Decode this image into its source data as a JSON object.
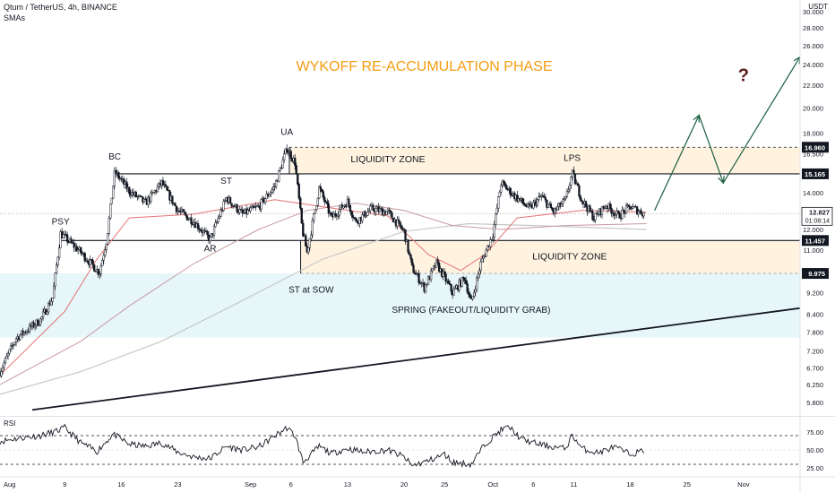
{
  "header": {
    "symbol_line": "Qtum / TetherUS, 4h, BINANCE",
    "indicator_label": "SMAs",
    "currency": "USDT"
  },
  "chart_data": {
    "type": "candlestick",
    "title": "WYKOFF RE-ACCUMULATION PHASE",
    "y_scale": "log",
    "ylim": [
      5.5,
      31.5
    ],
    "y_ticks": [
      {
        "v": 30.0,
        "label": "30.000"
      },
      {
        "v": 28.0,
        "label": "28.000"
      },
      {
        "v": 26.0,
        "label": "26.000"
      },
      {
        "v": 24.0,
        "label": "24.000"
      },
      {
        "v": 22.0,
        "label": "22.000"
      },
      {
        "v": 20.0,
        "label": "20.000"
      },
      {
        "v": 18.0,
        "label": "18.000"
      },
      {
        "v": 16.5,
        "label": "16.500"
      },
      {
        "v": 14.0,
        "label": "14.000"
      },
      {
        "v": 12.0,
        "label": "12.000"
      },
      {
        "v": 11.0,
        "label": "11.000"
      },
      {
        "v": 9.2,
        "label": "9.200"
      },
      {
        "v": 8.4,
        "label": "8.400"
      },
      {
        "v": 7.8,
        "label": "7.800"
      },
      {
        "v": 7.2,
        "label": "7.200"
      },
      {
        "v": 6.7,
        "label": "6.700"
      },
      {
        "v": 6.25,
        "label": "6.250"
      },
      {
        "v": 5.8,
        "label": "5.800"
      }
    ],
    "x_ticks": [
      {
        "label": "Aug",
        "day": 0
      },
      {
        "label": "9",
        "day": 8
      },
      {
        "label": "16",
        "day": 15
      },
      {
        "label": "23",
        "day": 22
      },
      {
        "label": "Sep",
        "day": 31
      },
      {
        "label": "6",
        "day": 36
      },
      {
        "label": "13",
        "day": 43
      },
      {
        "label": "20",
        "day": 50
      },
      {
        "label": "25",
        "day": 55
      },
      {
        "label": "Oct",
        "day": 61
      },
      {
        "label": "6",
        "day": 66
      },
      {
        "label": "11",
        "day": 71
      },
      {
        "label": "18",
        "day": 78
      },
      {
        "label": "25",
        "day": 85
      },
      {
        "label": "Nov",
        "day": 92
      }
    ],
    "price_markers": [
      {
        "v": 16.96,
        "label": "16.960"
      },
      {
        "v": 15.165,
        "label": "15.165"
      },
      {
        "v": 11.457,
        "label": "11.457"
      },
      {
        "v": 9.975,
        "label": "9.975"
      }
    ],
    "last_price": {
      "label": "12.827",
      "countdown": "01:08:14",
      "v": 12.827
    },
    "swing_points": [
      {
        "day": 0,
        "v": 6.6
      },
      {
        "day": 2,
        "v": 7.6
      },
      {
        "day": 5,
        "v": 8.2
      },
      {
        "day": 6.5,
        "v": 9.0
      },
      {
        "day": 7.5,
        "v": 11.8
      },
      {
        "day": 10,
        "v": 10.9
      },
      {
        "day": 12.3,
        "v": 10.0
      },
      {
        "day": 13.2,
        "v": 11.5
      },
      {
        "day": 14.2,
        "v": 15.3
      },
      {
        "day": 16,
        "v": 14.1
      },
      {
        "day": 18,
        "v": 13.4
      },
      {
        "day": 20,
        "v": 14.6
      },
      {
        "day": 22,
        "v": 13.0
      },
      {
        "day": 24,
        "v": 12.4
      },
      {
        "day": 26,
        "v": 11.5
      },
      {
        "day": 28,
        "v": 13.7
      },
      {
        "day": 30,
        "v": 12.8
      },
      {
        "day": 32,
        "v": 13.2
      },
      {
        "day": 34,
        "v": 14.4
      },
      {
        "day": 35.5,
        "v": 16.9
      },
      {
        "day": 36.5,
        "v": 15.9
      },
      {
        "day": 37.4,
        "v": 12.0
      },
      {
        "day": 38,
        "v": 10.9
      },
      {
        "day": 39.5,
        "v": 14.3
      },
      {
        "day": 41,
        "v": 12.6
      },
      {
        "day": 43,
        "v": 13.5
      },
      {
        "day": 44,
        "v": 12.4
      },
      {
        "day": 46,
        "v": 13.1
      },
      {
        "day": 48,
        "v": 12.9
      },
      {
        "day": 50,
        "v": 11.9
      },
      {
        "day": 51,
        "v": 10.2
      },
      {
        "day": 52.5,
        "v": 9.4
      },
      {
        "day": 54,
        "v": 10.4
      },
      {
        "day": 55,
        "v": 9.8
      },
      {
        "day": 56,
        "v": 9.2
      },
      {
        "day": 57.5,
        "v": 9.8
      },
      {
        "day": 58.3,
        "v": 8.8
      },
      {
        "day": 59.5,
        "v": 10.4
      },
      {
        "day": 61,
        "v": 11.8
      },
      {
        "day": 62,
        "v": 14.6
      },
      {
        "day": 63.5,
        "v": 13.9
      },
      {
        "day": 65.5,
        "v": 13.1
      },
      {
        "day": 67,
        "v": 13.8
      },
      {
        "day": 68.5,
        "v": 12.9
      },
      {
        "day": 70,
        "v": 13.6
      },
      {
        "day": 70.8,
        "v": 15.2
      },
      {
        "day": 72,
        "v": 13.6
      },
      {
        "day": 73.5,
        "v": 12.6
      },
      {
        "day": 75,
        "v": 13.3
      },
      {
        "day": 76.5,
        "v": 12.7
      },
      {
        "day": 78,
        "v": 13.2
      },
      {
        "day": 79.7,
        "v": 12.83
      }
    ],
    "sma_fast": [
      {
        "day": 0,
        "v": 6.5
      },
      {
        "day": 8,
        "v": 8.5
      },
      {
        "day": 12,
        "v": 10.6
      },
      {
        "day": 16,
        "v": 12.6
      },
      {
        "day": 24,
        "v": 12.8
      },
      {
        "day": 34,
        "v": 13.6
      },
      {
        "day": 40,
        "v": 13.2
      },
      {
        "day": 48,
        "v": 12.7
      },
      {
        "day": 53,
        "v": 10.8
      },
      {
        "day": 57,
        "v": 10.1
      },
      {
        "day": 60,
        "v": 10.8
      },
      {
        "day": 64,
        "v": 12.6
      },
      {
        "day": 72,
        "v": 13.0
      },
      {
        "day": 80,
        "v": 12.9
      }
    ],
    "sma_slow": [
      {
        "day": 0,
        "v": 6.25
      },
      {
        "day": 10,
        "v": 7.5
      },
      {
        "day": 16,
        "v": 8.7
      },
      {
        "day": 24,
        "v": 10.4
      },
      {
        "day": 32,
        "v": 12.0
      },
      {
        "day": 38,
        "v": 13.0
      },
      {
        "day": 44,
        "v": 13.4
      },
      {
        "day": 50,
        "v": 13.0
      },
      {
        "day": 56,
        "v": 12.2
      },
      {
        "day": 62,
        "v": 12.0
      },
      {
        "day": 70,
        "v": 12.2
      },
      {
        "day": 80,
        "v": 12.3
      }
    ],
    "sma_long": [
      {
        "day": 0,
        "v": 6.0
      },
      {
        "day": 10,
        "v": 6.6
      },
      {
        "day": 20,
        "v": 7.5
      },
      {
        "day": 30,
        "v": 8.9
      },
      {
        "day": 40,
        "v": 10.6
      },
      {
        "day": 50,
        "v": 11.9
      },
      {
        "day": 58,
        "v": 12.3
      },
      {
        "day": 66,
        "v": 12.2
      },
      {
        "day": 80,
        "v": 12.0
      }
    ],
    "zones": [
      {
        "label": "LIQUIDITY ZONE",
        "from_day": 35.8,
        "to_day": 99,
        "high": 16.96,
        "low": 15.165,
        "color": "#fff3e0"
      },
      {
        "label": "LIQUIDITY ZONE",
        "from_day": 37.2,
        "to_day": 99,
        "high": 11.457,
        "low": 9.975,
        "color": "#fff3e0"
      },
      {
        "label": "",
        "from_day": -2,
        "to_day": 99,
        "high": 9.975,
        "low": 7.62,
        "color": "#e7f6f9"
      }
    ],
    "levels": [
      {
        "v": 15.165,
        "from_day": 14.2,
        "to_day": 99
      },
      {
        "v": 11.457,
        "from_day": 7.5,
        "to_day": 99
      },
      {
        "v": 12.827,
        "from_day": -2,
        "to_day": 99,
        "dotted": true
      }
    ],
    "trendline": {
      "from": {
        "day": 4,
        "v": 5.62
      },
      "to": {
        "day": 99,
        "v": 8.62
      }
    },
    "projection": [
      {
        "day": 81,
        "v": 13.0
      },
      {
        "day": 86.5,
        "v": 19.4
      },
      {
        "day": 89.5,
        "v": 14.6
      },
      {
        "day": 99,
        "v": 24.8
      }
    ],
    "annotations": [
      {
        "text": "PSY",
        "day": 7.5,
        "v": 12.25
      },
      {
        "text": "BC",
        "day": 14.2,
        "v": 16.1
      },
      {
        "text": "AR",
        "day": 26,
        "v": 10.95
      },
      {
        "text": "ST",
        "day": 28,
        "v": 14.55
      },
      {
        "text": "UA",
        "day": 35.5,
        "v": 17.85
      },
      {
        "text": "ST at SOW",
        "day": 38.5,
        "v": 9.2
      },
      {
        "text": "LPS",
        "day": 70.8,
        "v": 16.0
      },
      {
        "text": "SPRING (FAKEOUT/LIQUIDITY GRAB)",
        "day": 58.3,
        "v": 8.45
      },
      {
        "text": "?",
        "day": 92,
        "v": 22.4
      }
    ],
    "rsi": {
      "label": "RSI",
      "ticks": [
        {
          "v": 75,
          "label": "75.00"
        },
        {
          "v": 50,
          "label": "50.00"
        },
        {
          "v": 25,
          "label": "25.00"
        }
      ],
      "bands": [
        70,
        30
      ],
      "ylim": [
        15,
        95
      ],
      "values": [
        {
          "day": 0,
          "v": 62
        },
        {
          "day": 2,
          "v": 66
        },
        {
          "day": 5,
          "v": 70
        },
        {
          "day": 7,
          "v": 76
        },
        {
          "day": 8,
          "v": 81
        },
        {
          "day": 10,
          "v": 60
        },
        {
          "day": 12,
          "v": 48
        },
        {
          "day": 14,
          "v": 72
        },
        {
          "day": 16,
          "v": 58
        },
        {
          "day": 18,
          "v": 55
        },
        {
          "day": 20,
          "v": 60
        },
        {
          "day": 22,
          "v": 47
        },
        {
          "day": 24,
          "v": 40
        },
        {
          "day": 26,
          "v": 38
        },
        {
          "day": 28,
          "v": 55
        },
        {
          "day": 30,
          "v": 50
        },
        {
          "day": 32,
          "v": 54
        },
        {
          "day": 35.5,
          "v": 81
        },
        {
          "day": 36.5,
          "v": 70
        },
        {
          "day": 37.5,
          "v": 33
        },
        {
          "day": 39.5,
          "v": 55
        },
        {
          "day": 41,
          "v": 45
        },
        {
          "day": 43,
          "v": 52
        },
        {
          "day": 45,
          "v": 47
        },
        {
          "day": 48,
          "v": 50
        },
        {
          "day": 50,
          "v": 40
        },
        {
          "day": 51,
          "v": 28
        },
        {
          "day": 53,
          "v": 35
        },
        {
          "day": 55,
          "v": 44
        },
        {
          "day": 56,
          "v": 33
        },
        {
          "day": 58.3,
          "v": 30
        },
        {
          "day": 60,
          "v": 58
        },
        {
          "day": 62,
          "v": 78
        },
        {
          "day": 63,
          "v": 82
        },
        {
          "day": 64.5,
          "v": 65
        },
        {
          "day": 66,
          "v": 60
        },
        {
          "day": 68,
          "v": 55
        },
        {
          "day": 70,
          "v": 52
        },
        {
          "day": 70.8,
          "v": 71
        },
        {
          "day": 72,
          "v": 52
        },
        {
          "day": 74,
          "v": 46
        },
        {
          "day": 76,
          "v": 54
        },
        {
          "day": 78,
          "v": 44
        },
        {
          "day": 79.7,
          "v": 49
        }
      ]
    }
  }
}
